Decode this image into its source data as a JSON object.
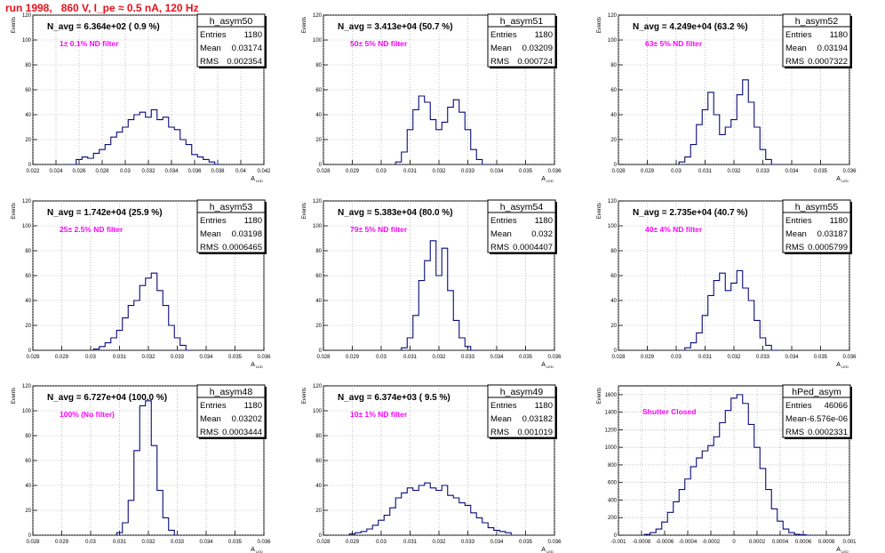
{
  "title": "run 1998,   860 V, I_pe ≈ 0.5 nA, 120 Hz",
  "y_axis_label": "Events",
  "x_axis_label": "A_LED",
  "colors": {
    "title": "#e8111a",
    "histogram": "#0a0a7a",
    "filter_text": "#ff00ff",
    "grid": "#999999"
  },
  "stats_labels": {
    "entries": "Entries",
    "mean": "Mean",
    "rms": "RMS"
  },
  "chart_data": [
    {
      "type": "histogram",
      "name": "h_asym50",
      "nlabel": "N_avg = 6.364e+02 ( 0.9 %)",
      "filter": "1± 0.1% ND filter",
      "stats": {
        "entries": "1180",
        "mean": "0.03174",
        "rms": "0.002354"
      },
      "xlim": [
        0.022,
        0.042
      ],
      "ylim": [
        0,
        120
      ],
      "xticks": [
        "0.022",
        "0.024",
        "0.026",
        "0.028",
        "0.03",
        "0.032",
        "0.034",
        "0.036",
        "0.038",
        "0.04",
        "0.042"
      ],
      "xtick_values": [
        0.022,
        0.024,
        0.026,
        0.028,
        0.03,
        0.032,
        0.034,
        0.036,
        0.038,
        0.04,
        0.042
      ],
      "yticks": [
        0,
        20,
        40,
        60,
        80,
        100,
        120
      ],
      "bins": [
        0.0255,
        0.026,
        0.0265,
        0.027,
        0.0275,
        0.028,
        0.0285,
        0.029,
        0.0295,
        0.03,
        0.0305,
        0.031,
        0.0315,
        0.032,
        0.0325,
        0.033,
        0.0335,
        0.034,
        0.0345,
        0.035,
        0.0355,
        0.036,
        0.0365,
        0.037,
        0.0375,
        0.038
      ],
      "values": [
        0,
        4,
        6,
        5,
        9,
        12,
        16,
        22,
        26,
        30,
        36,
        40,
        42,
        38,
        44,
        36,
        38,
        30,
        28,
        20,
        16,
        8,
        6,
        4,
        2,
        0
      ]
    },
    {
      "type": "histogram",
      "name": "h_asym51",
      "nlabel": "N_avg = 3.413e+04 (50.7 %)",
      "filter": "50± 5% ND filter",
      "stats": {
        "entries": "1180",
        "mean": "0.03209",
        "rms": "0.000724"
      },
      "xlim": [
        0.028,
        0.036
      ],
      "ylim": [
        0,
        120
      ],
      "xticks": [
        "0.028",
        "0.029",
        "0.03",
        "0.031",
        "0.032",
        "0.033",
        "0.034",
        "0.035",
        "0.036"
      ],
      "xtick_values": [
        0.028,
        0.029,
        0.03,
        0.031,
        0.032,
        0.033,
        0.034,
        0.035,
        0.036
      ],
      "yticks": [
        0,
        20,
        40,
        60,
        80,
        100,
        120
      ],
      "bins": [
        0.0306,
        0.0308,
        0.031,
        0.0312,
        0.0314,
        0.0316,
        0.0318,
        0.032,
        0.0322,
        0.0324,
        0.0326,
        0.0328,
        0.033,
        0.0332,
        0.0334,
        0.0336
      ],
      "values": [
        2,
        10,
        28,
        44,
        55,
        50,
        36,
        28,
        34,
        46,
        52,
        42,
        28,
        12,
        4,
        0
      ]
    },
    {
      "type": "histogram",
      "name": "h_asym52",
      "nlabel": "N_avg = 4.249e+04 (63.2 %)",
      "filter": "63± 5% ND filter",
      "stats": {
        "entries": "1180",
        "mean": "0.03194",
        "rms": "0.0007322"
      },
      "xlim": [
        0.028,
        0.036
      ],
      "ylim": [
        0,
        120
      ],
      "xticks": [
        "0.028",
        "0.029",
        "0.03",
        "0.031",
        "0.032",
        "0.033",
        "0.034",
        "0.035",
        "0.036"
      ],
      "xtick_values": [
        0.028,
        0.029,
        0.03,
        0.031,
        0.032,
        0.033,
        0.034,
        0.035,
        0.036
      ],
      "yticks": [
        0,
        20,
        40,
        60,
        80,
        100,
        120
      ],
      "bins": [
        0.0302,
        0.0304,
        0.0306,
        0.0308,
        0.031,
        0.0312,
        0.0314,
        0.0316,
        0.0318,
        0.032,
        0.0322,
        0.0324,
        0.0326,
        0.0328,
        0.033,
        0.0332,
        0.0334
      ],
      "values": [
        2,
        6,
        16,
        32,
        44,
        58,
        40,
        24,
        30,
        36,
        56,
        68,
        50,
        30,
        12,
        4,
        0
      ]
    },
    {
      "type": "histogram",
      "name": "h_asym53",
      "nlabel": "N_avg = 1.742e+04 (25.9 %)",
      "filter": "25± 2.5% ND filter",
      "stats": {
        "entries": "1180",
        "mean": "0.03198",
        "rms": "0.0006465"
      },
      "xlim": [
        0.028,
        0.036
      ],
      "ylim": [
        0,
        120
      ],
      "xticks": [
        "0.028",
        "0.029",
        "0.03",
        "0.031",
        "0.032",
        "0.033",
        "0.034",
        "0.035",
        "0.036"
      ],
      "xtick_values": [
        0.028,
        0.029,
        0.03,
        0.031,
        0.032,
        0.033,
        0.034,
        0.035,
        0.036
      ],
      "yticks": [
        0,
        20,
        40,
        60,
        80,
        100,
        120
      ],
      "bins": [
        0.0302,
        0.0304,
        0.0306,
        0.0308,
        0.031,
        0.0312,
        0.0314,
        0.0316,
        0.0318,
        0.032,
        0.0322,
        0.0324,
        0.0326,
        0.0328,
        0.033,
        0.0332,
        0.0334
      ],
      "values": [
        1,
        3,
        6,
        10,
        16,
        26,
        36,
        40,
        52,
        58,
        62,
        48,
        36,
        20,
        10,
        4,
        0
      ]
    },
    {
      "type": "histogram",
      "name": "h_asym54",
      "nlabel": "N_avg = 5.383e+04 (80.0 %)",
      "filter": "79± 5% ND filter",
      "stats": {
        "entries": "1180",
        "mean": "0.032",
        "rms": "0.0004407"
      },
      "xlim": [
        0.028,
        0.036
      ],
      "ylim": [
        0,
        120
      ],
      "xticks": [
        "0.028",
        "0.029",
        "0.03",
        "0.031",
        "0.032",
        "0.033",
        "0.034",
        "0.035",
        "0.036"
      ],
      "xtick_values": [
        0.028,
        0.029,
        0.03,
        0.031,
        0.032,
        0.033,
        0.034,
        0.035,
        0.036
      ],
      "yticks": [
        0,
        20,
        40,
        60,
        80,
        100,
        120
      ],
      "bins": [
        0.0308,
        0.031,
        0.0312,
        0.0314,
        0.0316,
        0.0318,
        0.032,
        0.0322,
        0.0324,
        0.0326,
        0.0328,
        0.033,
        0.0332
      ],
      "values": [
        2,
        10,
        28,
        56,
        72,
        88,
        60,
        82,
        48,
        24,
        10,
        3,
        0
      ]
    },
    {
      "type": "histogram",
      "name": "h_asym55",
      "nlabel": "N_avg = 2.735e+04 (40.7 %)",
      "filter": "40± 4% ND filter",
      "stats": {
        "entries": "1180",
        "mean": "0.03187",
        "rms": "0.0005799"
      },
      "xlim": [
        0.028,
        0.036
      ],
      "ylim": [
        0,
        120
      ],
      "xticks": [
        "0.028",
        "0.029",
        "0.03",
        "0.031",
        "0.032",
        "0.033",
        "0.034",
        "0.035",
        "0.036"
      ],
      "xtick_values": [
        0.028,
        0.029,
        0.03,
        0.031,
        0.032,
        0.033,
        0.034,
        0.035,
        0.036
      ],
      "yticks": [
        0,
        20,
        40,
        60,
        80,
        100,
        120
      ],
      "bins": [
        0.0304,
        0.0306,
        0.0308,
        0.031,
        0.0312,
        0.0314,
        0.0316,
        0.0318,
        0.032,
        0.0322,
        0.0324,
        0.0326,
        0.0328,
        0.033,
        0.0332,
        0.0334
      ],
      "values": [
        2,
        6,
        14,
        28,
        44,
        56,
        62,
        48,
        54,
        64,
        50,
        40,
        24,
        10,
        4,
        0
      ]
    },
    {
      "type": "histogram",
      "name": "h_asym48",
      "nlabel": "N_avg = 6.727e+04 (100.0 %)",
      "filter": "100% (No filter)",
      "stats": {
        "entries": "1180",
        "mean": "0.03202",
        "rms": "0.0003444"
      },
      "xlim": [
        0.028,
        0.036
      ],
      "ylim": [
        0,
        120
      ],
      "xticks": [
        "0.028",
        "0.029",
        "0.03",
        "0.031",
        "0.032",
        "0.033",
        "0.034",
        "0.035",
        "0.036"
      ],
      "xtick_values": [
        0.028,
        0.029,
        0.03,
        0.031,
        0.032,
        0.033,
        0.034,
        0.035,
        0.036
      ],
      "yticks": [
        0,
        20,
        40,
        60,
        80,
        100,
        120
      ],
      "bins": [
        0.031,
        0.0312,
        0.0314,
        0.0316,
        0.0318,
        0.032,
        0.0322,
        0.0324,
        0.0326,
        0.0328,
        0.033
      ],
      "values": [
        2,
        10,
        28,
        68,
        104,
        108,
        72,
        36,
        14,
        4,
        0
      ]
    },
    {
      "type": "histogram",
      "name": "h_asym49",
      "nlabel": "N_avg = 6.374e+03 ( 9.5 %)",
      "filter": "10± 1% ND filter",
      "stats": {
        "entries": "1180",
        "mean": "0.03182",
        "rms": "0.001019"
      },
      "xlim": [
        0.028,
        0.036
      ],
      "ylim": [
        0,
        120
      ],
      "xticks": [
        "0.028",
        "0.029",
        "0.03",
        "0.031",
        "0.032",
        "0.033",
        "0.034",
        "0.035",
        "0.036"
      ],
      "xtick_values": [
        0.028,
        0.029,
        0.03,
        0.031,
        0.032,
        0.033,
        0.034,
        0.035,
        0.036
      ],
      "yticks": [
        0,
        20,
        40,
        60,
        80,
        100,
        120
      ],
      "bins": [
        0.029,
        0.0292,
        0.0294,
        0.0296,
        0.0298,
        0.03,
        0.0302,
        0.0304,
        0.0306,
        0.0308,
        0.031,
        0.0312,
        0.0314,
        0.0316,
        0.0318,
        0.032,
        0.0322,
        0.0324,
        0.0326,
        0.0328,
        0.033,
        0.0332,
        0.0334,
        0.0336,
        0.0338,
        0.034,
        0.0342,
        0.0344,
        0.0346
      ],
      "values": [
        1,
        2,
        3,
        5,
        8,
        12,
        16,
        22,
        30,
        34,
        38,
        36,
        40,
        42,
        38,
        36,
        40,
        32,
        30,
        26,
        24,
        18,
        14,
        10,
        6,
        4,
        3,
        2,
        0
      ]
    },
    {
      "type": "histogram",
      "name": "hPed_asym",
      "nlabel": "",
      "filter": "Shutter Closed",
      "stats": {
        "entries": "46066",
        "mean": "-6.576e-06",
        "rms": "0.0002331"
      },
      "xlim": [
        -0.001,
        0.001
      ],
      "ylim": [
        0,
        1700
      ],
      "xticks": [
        "-0.001",
        "-0.0008",
        "-0.0006",
        "-0.0004",
        "-0.0002",
        "0",
        "0.0002",
        "0.0004",
        "0.0006",
        "0.0008",
        "0.001"
      ],
      "xtick_values": [
        -0.001,
        -0.0008,
        -0.0006,
        -0.0004,
        -0.0002,
        0,
        0.0002,
        0.0004,
        0.0006,
        0.0008,
        0.001
      ],
      "yticks": [
        0,
        200,
        400,
        600,
        800,
        1000,
        1200,
        1400,
        1600
      ],
      "bins": [
        -0.00075,
        -0.0007,
        -0.00065,
        -0.0006,
        -0.00055,
        -0.0005,
        -0.00045,
        -0.0004,
        -0.00035,
        -0.0003,
        -0.00025,
        -0.0002,
        -0.00015,
        -0.0001,
        -5e-05,
        0,
        5e-05,
        0.0001,
        0.00015,
        0.0002,
        0.00025,
        0.0003,
        0.00035,
        0.0004,
        0.00045,
        0.0005,
        0.00055,
        0.0006,
        0.00065
      ],
      "values": [
        10,
        30,
        70,
        150,
        260,
        380,
        520,
        640,
        780,
        880,
        960,
        1020,
        1120,
        1280,
        1420,
        1560,
        1600,
        1500,
        1260,
        1000,
        760,
        520,
        300,
        160,
        70,
        30,
        10,
        4,
        0
      ]
    }
  ]
}
